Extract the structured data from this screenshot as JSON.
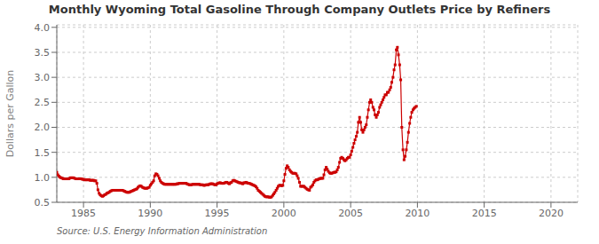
{
  "chart_data": {
    "type": "line",
    "title": "Monthly Wyoming Total Gasoline Through Company Outlets Price by Refiners",
    "ylabel": "Dollars per Gallon",
    "annotations": [
      "Source: U.S. Energy Information Administration"
    ],
    "color": "#cc0000",
    "marker": "square",
    "grid": true,
    "xlim": [
      1983.0,
      2022.0
    ],
    "ylim": [
      0.5,
      4.05
    ],
    "xticks": [
      1985,
      1990,
      1995,
      2000,
      2005,
      2010,
      2015,
      2020
    ],
    "yticks": [
      0.5,
      {
        "value": 1.0,
        "label": "1.0"
      },
      1.5,
      {
        "value": 2.0,
        "label": "2.0"
      },
      2.5,
      {
        "value": 3.0,
        "label": "3.0"
      },
      3.5,
      {
        "value": 4.0,
        "label": "4.0"
      }
    ],
    "x": [
      1983.0,
      1983.08,
      1983.17,
      1983.25,
      1983.33,
      1983.42,
      1983.5,
      1983.58,
      1983.67,
      1983.75,
      1983.83,
      1983.92,
      1984.0,
      1984.08,
      1984.17,
      1984.25,
      1984.33,
      1984.42,
      1984.5,
      1984.58,
      1984.67,
      1984.75,
      1984.83,
      1984.92,
      1985.0,
      1985.08,
      1985.17,
      1985.25,
      1985.33,
      1985.42,
      1985.5,
      1985.58,
      1985.67,
      1985.75,
      1985.83,
      1985.92,
      1986.0,
      1986.08,
      1986.17,
      1986.25,
      1986.33,
      1986.42,
      1986.5,
      1986.58,
      1986.67,
      1986.75,
      1986.83,
      1986.92,
      1987.0,
      1987.08,
      1987.17,
      1987.25,
      1987.33,
      1987.42,
      1987.5,
      1987.58,
      1987.67,
      1987.75,
      1987.83,
      1987.92,
      1988.0,
      1988.08,
      1988.17,
      1988.25,
      1988.33,
      1988.42,
      1988.5,
      1988.58,
      1988.67,
      1988.75,
      1988.83,
      1988.92,
      1989.0,
      1989.08,
      1989.17,
      1989.25,
      1989.33,
      1989.42,
      1989.5,
      1989.58,
      1989.67,
      1989.75,
      1989.83,
      1989.92,
      1990.0,
      1990.08,
      1990.17,
      1990.25,
      1990.33,
      1990.42,
      1990.5,
      1990.58,
      1990.67,
      1990.75,
      1990.83,
      1990.92,
      1991.0,
      1991.08,
      1991.17,
      1991.25,
      1991.33,
      1991.42,
      1991.5,
      1991.58,
      1991.67,
      1991.75,
      1991.83,
      1991.92,
      1992.0,
      1992.08,
      1992.17,
      1992.25,
      1992.33,
      1992.42,
      1992.5,
      1992.58,
      1992.67,
      1992.75,
      1992.83,
      1992.92,
      1993.0,
      1993.08,
      1993.17,
      1993.25,
      1993.33,
      1993.42,
      1993.5,
      1993.58,
      1993.67,
      1993.75,
      1993.83,
      1993.92,
      1994.0,
      1994.08,
      1994.17,
      1994.25,
      1994.33,
      1994.42,
      1994.5,
      1994.58,
      1994.67,
      1994.75,
      1994.83,
      1994.92,
      1995.0,
      1995.08,
      1995.17,
      1995.25,
      1995.33,
      1995.42,
      1995.5,
      1995.58,
      1995.67,
      1995.75,
      1995.83,
      1995.92,
      1996.0,
      1996.08,
      1996.17,
      1996.25,
      1996.33,
      1996.42,
      1996.5,
      1996.58,
      1996.67,
      1996.75,
      1996.83,
      1996.92,
      1997.0,
      1997.08,
      1997.17,
      1997.25,
      1997.33,
      1997.42,
      1997.5,
      1997.58,
      1997.67,
      1997.75,
      1997.83,
      1997.92,
      1998.0,
      1998.08,
      1998.17,
      1998.25,
      1998.33,
      1998.42,
      1998.5,
      1998.58,
      1998.67,
      1998.75,
      1998.83,
      1998.92,
      1999.0,
      1999.08,
      1999.17,
      1999.25,
      1999.33,
      1999.42,
      1999.5,
      1999.58,
      1999.67,
      1999.75,
      1999.83,
      1999.92,
      2000.0,
      2000.08,
      2000.17,
      2000.25,
      2000.33,
      2000.42,
      2000.5,
      2000.58,
      2000.67,
      2000.75,
      2000.83,
      2000.92,
      2001.0,
      2001.08,
      2001.17,
      2001.25,
      2001.33,
      2001.42,
      2001.5,
      2001.58,
      2001.67,
      2001.75,
      2001.83,
      2001.92,
      2002.0,
      2002.08,
      2002.17,
      2002.25,
      2002.33,
      2002.42,
      2002.5,
      2002.58,
      2002.67,
      2002.75,
      2002.83,
      2002.92,
      2003.0,
      2003.08,
      2003.17,
      2003.25,
      2003.33,
      2003.42,
      2003.5,
      2003.58,
      2003.67,
      2003.75,
      2003.83,
      2003.92,
      2004.0,
      2004.08,
      2004.17,
      2004.25,
      2004.33,
      2004.42,
      2004.5,
      2004.58,
      2004.67,
      2004.75,
      2004.83,
      2004.92,
      2005.0,
      2005.08,
      2005.17,
      2005.25,
      2005.33,
      2005.42,
      2005.5,
      2005.58,
      2005.67,
      2005.75,
      2005.83,
      2005.92,
      2006.0,
      2006.08,
      2006.17,
      2006.25,
      2006.33,
      2006.42,
      2006.5,
      2006.58,
      2006.67,
      2006.75,
      2006.83,
      2006.92,
      2007.0,
      2007.08,
      2007.17,
      2007.25,
      2007.33,
      2007.42,
      2007.5,
      2007.58,
      2007.67,
      2007.75,
      2007.83,
      2007.92,
      2008.0,
      2008.08,
      2008.17,
      2008.25,
      2008.33,
      2008.42,
      2008.5,
      2008.58,
      2008.67,
      2008.75,
      2008.83,
      2008.92,
      2009.0,
      2009.08,
      2009.17,
      2009.25,
      2009.33,
      2009.42,
      2009.5,
      2009.58,
      2009.67,
      2009.75,
      2009.83,
      2009.92
    ],
    "values": [
      1.1,
      1.05,
      1.02,
      1.0,
      0.99,
      0.98,
      0.97,
      0.97,
      0.97,
      0.97,
      0.97,
      0.97,
      0.99,
      0.99,
      0.99,
      0.99,
      0.98,
      0.97,
      0.97,
      0.97,
      0.97,
      0.97,
      0.97,
      0.96,
      0.96,
      0.95,
      0.95,
      0.95,
      0.95,
      0.95,
      0.94,
      0.94,
      0.94,
      0.94,
      0.93,
      0.93,
      0.88,
      0.75,
      0.68,
      0.65,
      0.63,
      0.62,
      0.63,
      0.65,
      0.66,
      0.68,
      0.69,
      0.7,
      0.72,
      0.73,
      0.74,
      0.74,
      0.74,
      0.74,
      0.74,
      0.74,
      0.74,
      0.74,
      0.74,
      0.74,
      0.73,
      0.72,
      0.71,
      0.7,
      0.7,
      0.7,
      0.71,
      0.72,
      0.73,
      0.74,
      0.75,
      0.76,
      0.77,
      0.8,
      0.82,
      0.83,
      0.82,
      0.8,
      0.79,
      0.78,
      0.78,
      0.78,
      0.79,
      0.8,
      0.84,
      0.87,
      0.9,
      0.93,
      1.03,
      1.07,
      1.06,
      1.03,
      0.98,
      0.93,
      0.9,
      0.88,
      0.87,
      0.86,
      0.86,
      0.86,
      0.86,
      0.86,
      0.86,
      0.86,
      0.86,
      0.86,
      0.86,
      0.86,
      0.87,
      0.87,
      0.88,
      0.88,
      0.88,
      0.88,
      0.88,
      0.88,
      0.88,
      0.87,
      0.86,
      0.85,
      0.85,
      0.85,
      0.86,
      0.86,
      0.86,
      0.86,
      0.86,
      0.86,
      0.86,
      0.85,
      0.85,
      0.85,
      0.84,
      0.84,
      0.85,
      0.85,
      0.85,
      0.86,
      0.87,
      0.87,
      0.87,
      0.86,
      0.85,
      0.85,
      0.87,
      0.88,
      0.89,
      0.89,
      0.88,
      0.88,
      0.88,
      0.89,
      0.9,
      0.9,
      0.88,
      0.87,
      0.89,
      0.9,
      0.93,
      0.94,
      0.93,
      0.92,
      0.91,
      0.9,
      0.89,
      0.89,
      0.88,
      0.87,
      0.89,
      0.89,
      0.9,
      0.89,
      0.88,
      0.88,
      0.87,
      0.86,
      0.85,
      0.84,
      0.83,
      0.81,
      0.78,
      0.74,
      0.72,
      0.7,
      0.68,
      0.66,
      0.64,
      0.62,
      0.61,
      0.61,
      0.61,
      0.6,
      0.6,
      0.61,
      0.64,
      0.67,
      0.7,
      0.74,
      0.78,
      0.82,
      0.84,
      0.84,
      0.83,
      0.84,
      0.93,
      1.06,
      1.18,
      1.23,
      1.2,
      1.15,
      1.12,
      1.1,
      1.08,
      1.08,
      1.08,
      1.07,
      1.03,
      0.98,
      0.9,
      0.82,
      0.82,
      0.82,
      0.82,
      0.8,
      0.78,
      0.76,
      0.75,
      0.74,
      0.8,
      0.82,
      0.85,
      0.9,
      0.93,
      0.95,
      0.95,
      0.96,
      0.97,
      0.98,
      0.98,
      0.98,
      1.05,
      1.15,
      1.2,
      1.16,
      1.12,
      1.09,
      1.08,
      1.08,
      1.09,
      1.1,
      1.1,
      1.11,
      1.15,
      1.2,
      1.3,
      1.38,
      1.4,
      1.38,
      1.35,
      1.33,
      1.35,
      1.38,
      1.4,
      1.4,
      1.45,
      1.52,
      1.6,
      1.68,
      1.75,
      1.82,
      1.9,
      2.1,
      2.2,
      2.1,
      1.95,
      1.9,
      1.95,
      2.0,
      2.05,
      2.2,
      2.35,
      2.5,
      2.55,
      2.5,
      2.4,
      2.35,
      2.25,
      2.2,
      2.25,
      2.3,
      2.4,
      2.45,
      2.5,
      2.55,
      2.6,
      2.65,
      2.65,
      2.7,
      2.7,
      2.75,
      2.8,
      2.9,
      3.0,
      3.15,
      3.25,
      3.55,
      3.6,
      3.45,
      3.25,
      2.95,
      2.0,
      1.55,
      1.35,
      1.42,
      1.55,
      1.7,
      1.9,
      2.08,
      2.2,
      2.3,
      2.35,
      2.38,
      2.4,
      2.42
    ]
  }
}
